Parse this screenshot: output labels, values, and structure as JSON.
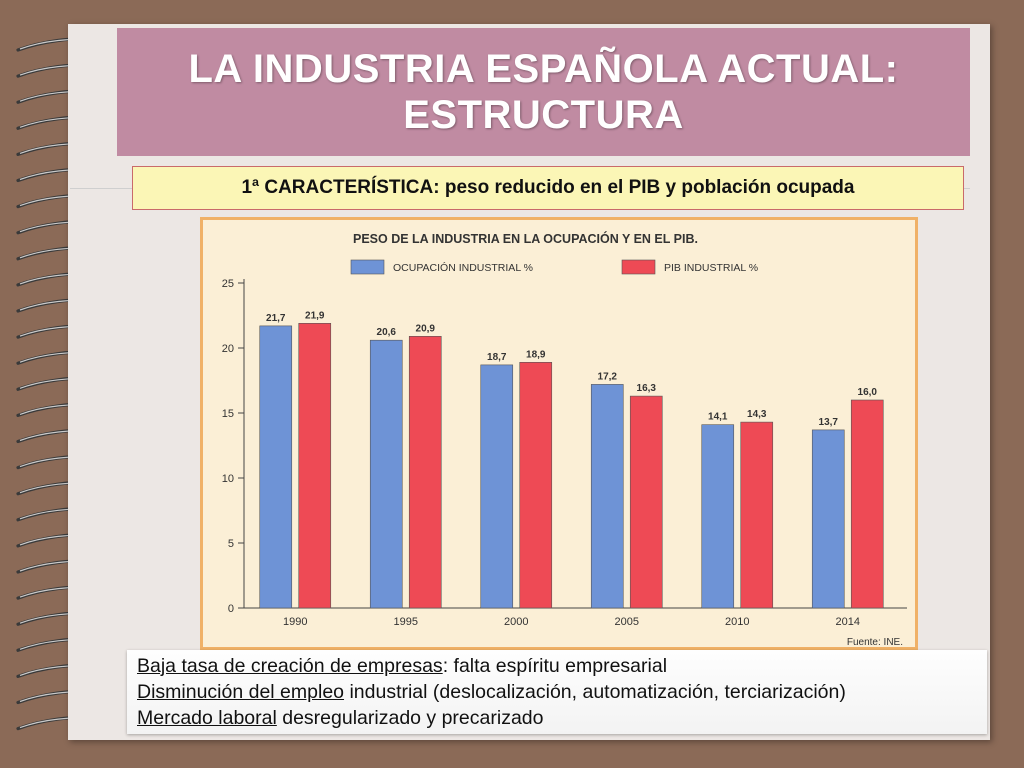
{
  "slide": {
    "title_line1": "LA INDUSTRIA ESPAÑOLA ACTUAL:",
    "title_line2": "ESTRUCTURA",
    "subtitle": "1ª CARACTERÍSTICA: peso reducido en el PIB y población ocupada"
  },
  "chart_data": {
    "type": "bar",
    "title": "PESO DE LA INDUSTRIA EN LA OCUPACIÓN Y EN EL PIB.",
    "categories": [
      "1990",
      "1995",
      "2000",
      "2005",
      "2010",
      "2014"
    ],
    "series": [
      {
        "name": "OCUPACIÓN INDUSTRIAL %",
        "color": "#6e93d6",
        "values": [
          21.7,
          20.6,
          18.7,
          17.2,
          14.1,
          13.7
        ],
        "labels": [
          "21,7",
          "20,6",
          "18,7",
          "17,2",
          "14,1",
          "13,7"
        ]
      },
      {
        "name": "PIB INDUSTRIAL %",
        "color": "#ee4a55",
        "values": [
          21.9,
          20.9,
          18.9,
          16.3,
          14.3,
          16.0
        ],
        "labels": [
          "21,9",
          "20,9",
          "18,9",
          "16,3",
          "14,3",
          "16,0"
        ]
      }
    ],
    "yticks": [
      "0",
      "5",
      "10",
      "15",
      "20",
      "25"
    ],
    "ylim": [
      0,
      25
    ],
    "source": "Fuente: INE.",
    "grid": false,
    "legend_position": "top"
  },
  "notes": [
    {
      "underlined": "Baja tasa de creación de empresas",
      "rest": ": falta espíritu empresarial"
    },
    {
      "underlined": "Disminución del empleo",
      "rest": " industrial (deslocalización, automatización, terciarización)"
    },
    {
      "underlined": "Mercado laboral",
      "rest": " desregularizado y precarizado"
    }
  ]
}
